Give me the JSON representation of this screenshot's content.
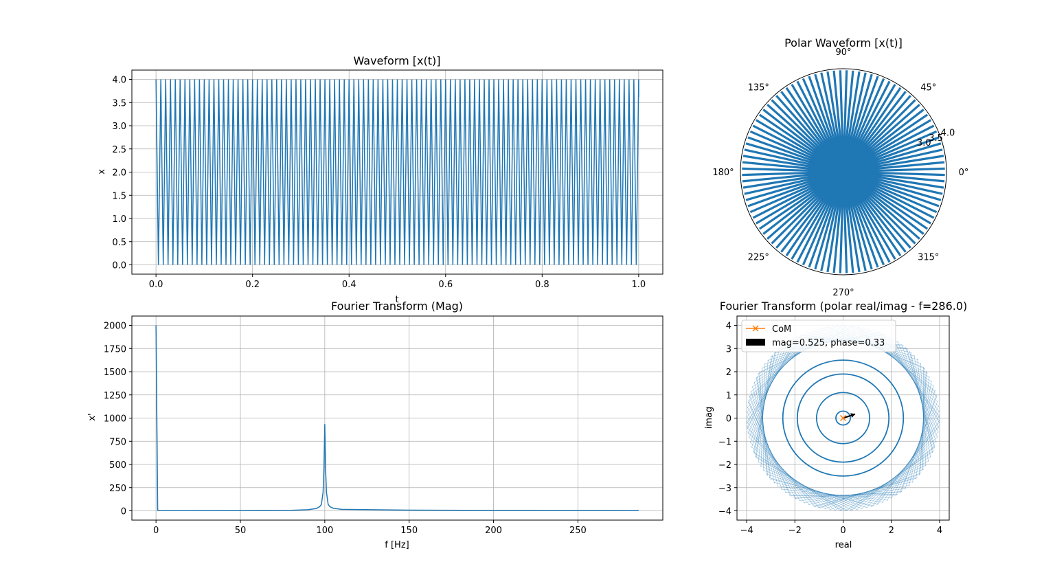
{
  "colors": {
    "series": "#1f77b4",
    "com": "#ff7f0e",
    "arrow": "#000000",
    "grid": "#b0b0b0"
  },
  "chart_data": [
    {
      "id": "waveform",
      "type": "line",
      "title": "Waveform [x(t)]",
      "xlabel": "t",
      "ylabel": "x",
      "xlim": [
        -0.05,
        1.05
      ],
      "ylim": [
        -0.2,
        4.2
      ],
      "xticks": [
        "0.0",
        "0.2",
        "0.4",
        "0.6",
        "0.8",
        "1.0"
      ],
      "yticks": [
        "0.0",
        "0.5",
        "1.0",
        "1.5",
        "2.0",
        "2.5",
        "3.0",
        "3.5",
        "4.0"
      ],
      "grid": true,
      "series": [
        {
          "signal": "triangle",
          "frequency_hz": 100,
          "t_range": [
            0,
            1
          ],
          "min": 0.0,
          "max": 4.0,
          "end_value": 3.62
        }
      ]
    },
    {
      "id": "polar-waveform",
      "type": "line",
      "projection": "polar",
      "title": "Polar Waveform [x(t)]",
      "theta_ticks": [
        "0°",
        "45°",
        "90°",
        "135°",
        "180°",
        "225°",
        "270°",
        "315°"
      ],
      "r_ticks": [
        "3.0",
        "3.5",
        "4.0"
      ],
      "rlim": [
        0,
        4.0
      ],
      "grid": false,
      "series": [
        {
          "signal": "triangle",
          "frequency_hz": 100,
          "wraps": 1,
          "r_min": 0.0,
          "r_max": 4.0
        }
      ]
    },
    {
      "id": "fourier-mag",
      "type": "line",
      "title": "Fourier Transform (Mag)",
      "xlabel": "f [Hz]",
      "ylabel": "x'",
      "xlim": [
        -14.3,
        300.3
      ],
      "ylim": [
        -100,
        2100
      ],
      "xticks": [
        "0",
        "50",
        "100",
        "150",
        "200",
        "250"
      ],
      "yticks": [
        "0",
        "250",
        "500",
        "750",
        "1000",
        "1250",
        "1500",
        "1750",
        "2000"
      ],
      "grid": true,
      "x": [
        0,
        1,
        2,
        5,
        20,
        50,
        80,
        90,
        95,
        97,
        98,
        99,
        99.5,
        100,
        100.5,
        101,
        102,
        103,
        105,
        110,
        150,
        200,
        250,
        286
      ],
      "series": [
        {
          "values": [
            2000,
            8,
            3,
            2,
            2,
            3,
            6,
            12,
            25,
            45,
            70,
            200,
            450,
            935,
            450,
            200,
            70,
            45,
            28,
            16,
            7,
            5,
            4,
            3
          ]
        }
      ]
    },
    {
      "id": "fourier-polar",
      "type": "line",
      "title": "Fourier Transform (polar real/imag - f=286.0)",
      "xlabel": "real",
      "ylabel": "imag",
      "xlim": [
        -4.4,
        4.4
      ],
      "ylim": [
        -4.4,
        4.4
      ],
      "xticks": [
        "−4",
        "−2",
        "0",
        "2",
        "4"
      ],
      "yticks": [
        "−4",
        "−3",
        "−2",
        "−1",
        "0",
        "1",
        "2",
        "3",
        "4"
      ],
      "grid": true,
      "legend": "upper left",
      "legend_entries": [
        "CoM",
        "mag=0.525, phase=0.33"
      ],
      "series": [
        {
          "name": "CoM",
          "x": [
            0.0
          ],
          "y": [
            0.0
          ]
        },
        {
          "name": "mag=0.525, phase=0.33",
          "magnitude": 0.525,
          "phase": 0.33
        }
      ],
      "rings": [
        0.3,
        1.1,
        1.9,
        2.5
      ],
      "max_radius": 4.0
    }
  ]
}
